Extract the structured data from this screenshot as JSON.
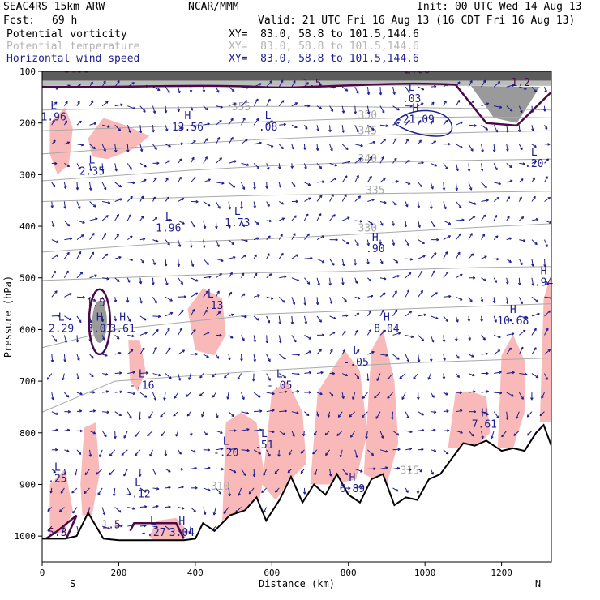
{
  "header": {
    "model": "SEAC4RS 15km ARW",
    "center": "NCAR/MMM",
    "init": "Init: 00 UTC Wed 14 Aug 13",
    "fcst_label": "Fcst:",
    "fcst_value": "69 h",
    "valid": "Valid: 21 UTC Fri 16 Aug 13 (16 CDT Fri 16 Aug 13)"
  },
  "fields": [
    {
      "name": "Potential vorticity",
      "xy": "XY=  83.0, 58.8 to 101.5,144.6",
      "color": "#000000"
    },
    {
      "name": "Potential temperature",
      "xy": "XY=  83.0, 58.8 to 101.5,144.6",
      "color": "#b4b4b4"
    },
    {
      "name": "Horizontal wind speed",
      "xy": "XY=  83.0, 58.8 to 101.5,144.6",
      "color": "#1e1e8c"
    }
  ],
  "colors": {
    "pv_positive": "#f9b9b9",
    "pv_contour": "#4a0a4a",
    "theta": "#a8a8a8",
    "wind": "#1e1e8c",
    "terrain": "#000000"
  },
  "chart_data": {
    "type": "cross-section",
    "xlabel": "Distance (km)",
    "ylabel": "Pressure (hPa)",
    "xlim": [
      0,
      1330
    ],
    "ylim": [
      1050,
      100
    ],
    "xticks": [
      0,
      200,
      400,
      600,
      800,
      1000,
      1200
    ],
    "yticks": [
      100,
      200,
      300,
      400,
      500,
      600,
      700,
      800,
      900,
      1000
    ],
    "x_endpoints": {
      "left": "S",
      "right": "N"
    },
    "terrain_surface": [
      {
        "x": 0,
        "p": 1005
      },
      {
        "x": 60,
        "p": 1005
      },
      {
        "x": 90,
        "p": 1000
      },
      {
        "x": 120,
        "p": 955
      },
      {
        "x": 160,
        "p": 1005
      },
      {
        "x": 200,
        "p": 1008
      },
      {
        "x": 300,
        "p": 1008
      },
      {
        "x": 370,
        "p": 1008
      },
      {
        "x": 400,
        "p": 1005
      },
      {
        "x": 420,
        "p": 975
      },
      {
        "x": 450,
        "p": 990
      },
      {
        "x": 490,
        "p": 960
      },
      {
        "x": 530,
        "p": 950
      },
      {
        "x": 560,
        "p": 925
      },
      {
        "x": 585,
        "p": 970
      },
      {
        "x": 620,
        "p": 930
      },
      {
        "x": 650,
        "p": 885
      },
      {
        "x": 680,
        "p": 935
      },
      {
        "x": 710,
        "p": 900
      },
      {
        "x": 740,
        "p": 920
      },
      {
        "x": 770,
        "p": 880
      },
      {
        "x": 800,
        "p": 920
      },
      {
        "x": 830,
        "p": 935
      },
      {
        "x": 860,
        "p": 890
      },
      {
        "x": 890,
        "p": 880
      },
      {
        "x": 920,
        "p": 940
      },
      {
        "x": 950,
        "p": 925
      },
      {
        "x": 980,
        "p": 930
      },
      {
        "x": 1010,
        "p": 890
      },
      {
        "x": 1040,
        "p": 880
      },
      {
        "x": 1070,
        "p": 850
      },
      {
        "x": 1100,
        "p": 820
      },
      {
        "x": 1130,
        "p": 825
      },
      {
        "x": 1160,
        "p": 815
      },
      {
        "x": 1200,
        "p": 835
      },
      {
        "x": 1230,
        "p": 830
      },
      {
        "x": 1260,
        "p": 835
      },
      {
        "x": 1290,
        "p": 800
      },
      {
        "x": 1310,
        "p": 785
      },
      {
        "x": 1330,
        "p": 825
      }
    ],
    "theta_contours": [
      {
        "label": "355",
        "p": [
          175,
          172,
          170,
          168,
          168,
          170,
          172,
          175
        ],
        "label_x": 520
      },
      {
        "label": "350",
        "p": [
          215,
          210,
          205,
          198,
          193,
          190,
          188,
          190
        ],
        "label_x": 800
      },
      {
        "label": "345",
        "p": [
          260,
          250,
          240,
          232,
          226,
          222,
          218,
          215
        ],
        "label_x": 720
      },
      {
        "label": "340",
        "p": [
          312,
          302,
          292,
          284,
          278,
          275,
          272,
          270
        ],
        "label_x": 800
      },
      {
        "label": "335",
        "p": [
          352,
          348,
          344,
          340,
          338,
          336,
          334,
          332
        ],
        "label_x": 800
      },
      {
        "label": "330",
        "p": [
          450,
          440,
          430,
          425,
          418,
          410,
          402,
          395
        ],
        "label_x": 800
      },
      {
        "label": "325",
        "p": [
          505,
          500,
          495,
          490,
          488,
          484,
          480,
          478
        ],
        "label_x": 720
      },
      {
        "label": "320",
        "p": [
          635,
          600,
          585,
          570,
          565,
          560,
          555,
          550
        ],
        "label_x": 420
      },
      {
        "label": "315",
        "p": [
          760,
          700,
          690,
          680,
          672,
          665,
          660,
          655
        ],
        "label_x": 1000
      }
    ],
    "extrema": [
      {
        "type": "L",
        "value": "1.96",
        "x": 30,
        "p": 195
      },
      {
        "type": "L",
        "value": "2.35",
        "x": 130,
        "p": 300
      },
      {
        "type": "H",
        "value": "13.56",
        "x": 380,
        "p": 215
      },
      {
        "type": "L",
        "value": ".08",
        "x": 590,
        "p": 215
      },
      {
        "type": "H",
        "value": "-21.09",
        "x": 975,
        "p": 200
      },
      {
        "type": "L",
        "value": ".03",
        "x": 965,
        "p": 160
      },
      {
        "type": "L",
        "value": ".20",
        "x": 1285,
        "p": 285
      },
      {
        "type": "L",
        "value": "1.96",
        "x": 330,
        "p": 410
      },
      {
        "type": "L",
        "value": "1.73",
        "x": 510,
        "p": 400
      },
      {
        "type": "H",
        "value": ".90",
        "x": 870,
        "p": 450
      },
      {
        "type": "H",
        "value": ".94",
        "x": 1310,
        "p": 515
      },
      {
        "type": "L",
        "value": "2.29",
        "x": 50,
        "p": 605
      },
      {
        "type": "H",
        "value": "3.01",
        "x": 150,
        "p": 605
      },
      {
        "type": "H",
        "value": "3.61",
        "x": 210,
        "p": 605
      },
      {
        "type": "L",
        "value": "-.13",
        "x": 440,
        "p": 560
      },
      {
        "type": "H",
        "value": "10.68",
        "x": 1230,
        "p": 590
      },
      {
        "type": "H",
        "value": "8.04",
        "x": 900,
        "p": 605
      },
      {
        "type": "L",
        "value": "-.05",
        "x": 820,
        "p": 670
      },
      {
        "type": "L",
        "value": "-.16",
        "x": 260,
        "p": 715
      },
      {
        "type": "L",
        "value": "-.05",
        "x": 620,
        "p": 715
      },
      {
        "type": "H",
        "value": "7.61",
        "x": 1155,
        "p": 790
      },
      {
        "type": "L",
        "value": ".51",
        "x": 580,
        "p": 830
      },
      {
        "type": "L",
        "value": "-.20",
        "x": 480,
        "p": 845
      },
      {
        "type": "L",
        "value": ".25",
        "x": 40,
        "p": 895
      },
      {
        "type": "L",
        "value": "-.12",
        "x": 250,
        "p": 925
      },
      {
        "type": "H",
        "value": "6.89",
        "x": 810,
        "p": 915
      },
      {
        "type": "L",
        "value": "-.27",
        "x": 290,
        "p": 1000
      },
      {
        "type": "H",
        "value": "3.04",
        "x": 365,
        "p": 1000
      }
    ],
    "pv_contour_labels": [
      {
        "value": "1.5",
        "x": 140,
        "p": 555
      },
      {
        "value": "1.5",
        "x": 180,
        "p": 985
      },
      {
        "value": "1.5",
        "x": 705,
        "p": 130
      },
      {
        "value": "1.2",
        "x": 1250,
        "p": 128
      },
      {
        "value": "5.3",
        "x": 40,
        "p": 1000
      },
      {
        "value": "3.98",
        "x": 90,
        "p": 102
      },
      {
        "value": "2.06",
        "x": 980,
        "p": 104
      },
      {
        "value": "1.54",
        "x": 610,
        "p": 101
      }
    ],
    "theta_extra_labels": [
      {
        "value": "355",
        "x": 520,
        "p": 175
      },
      {
        "value": "350",
        "x": 850,
        "p": 191
      },
      {
        "value": "345",
        "x": 850,
        "p": 222
      },
      {
        "value": "340",
        "x": 850,
        "p": 276
      },
      {
        "value": "335",
        "x": 870,
        "p": 337
      },
      {
        "value": "330",
        "x": 850,
        "p": 410
      },
      {
        "value": "310",
        "x": 465,
        "p": 910
      },
      {
        "value": "315",
        "x": 960,
        "p": 880
      }
    ]
  }
}
